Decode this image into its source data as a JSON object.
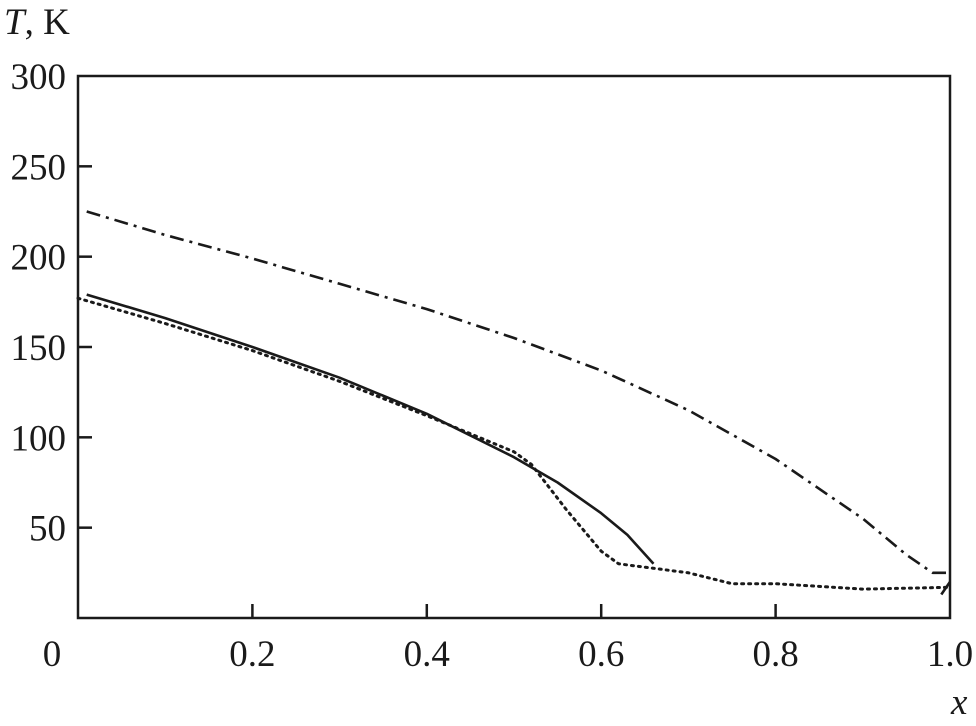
{
  "chart_data": {
    "type": "line",
    "title": "",
    "xlabel": "x",
    "ylabel_symbol": "T",
    "ylabel_rest": ", K",
    "xlim": [
      0,
      1.0
    ],
    "ylim": [
      0,
      300
    ],
    "xticks": [
      0,
      0.2,
      0.4,
      0.6,
      0.8,
      1.0
    ],
    "xtick_labels": [
      "0",
      "0.2",
      "0.4",
      "0.6",
      "0.8",
      "1.0"
    ],
    "yticks": [
      50,
      100,
      150,
      200,
      250,
      300
    ],
    "ytick_labels": [
      "50",
      "100",
      "150",
      "200",
      "250",
      "300"
    ],
    "grid": false,
    "legend": "none",
    "series": [
      {
        "style": "solid",
        "color": "#1a1a1a",
        "x": [
          0.01,
          0.1,
          0.2,
          0.3,
          0.4,
          0.5,
          0.55,
          0.6,
          0.63,
          0.66
        ],
        "y": [
          179,
          166,
          150,
          133,
          113,
          89,
          75,
          58,
          46,
          30
        ]
      },
      {
        "style": "dotted",
        "color": "#1a1a1a",
        "x": [
          0.0,
          0.1,
          0.2,
          0.3,
          0.4,
          0.5,
          0.52,
          0.56,
          0.6,
          0.62,
          0.7,
          0.75,
          0.8,
          0.9,
          1.0
        ],
        "y": [
          177,
          163,
          148,
          131,
          112,
          92,
          85,
          60,
          37,
          30,
          25,
          19,
          19,
          16,
          17
        ]
      },
      {
        "style": "dashdot",
        "color": "#1a1a1a",
        "x": [
          0.01,
          0.1,
          0.2,
          0.3,
          0.4,
          0.5,
          0.6,
          0.7,
          0.8,
          0.9,
          0.95,
          0.98,
          1.0
        ],
        "y": [
          225,
          212,
          199,
          185,
          171,
          155,
          137,
          115,
          88,
          55,
          35,
          25,
          25
        ]
      },
      {
        "style": "solid",
        "color": "#1a1a1a",
        "x": [
          0.99,
          1.0
        ],
        "y": [
          13,
          20
        ]
      }
    ]
  }
}
